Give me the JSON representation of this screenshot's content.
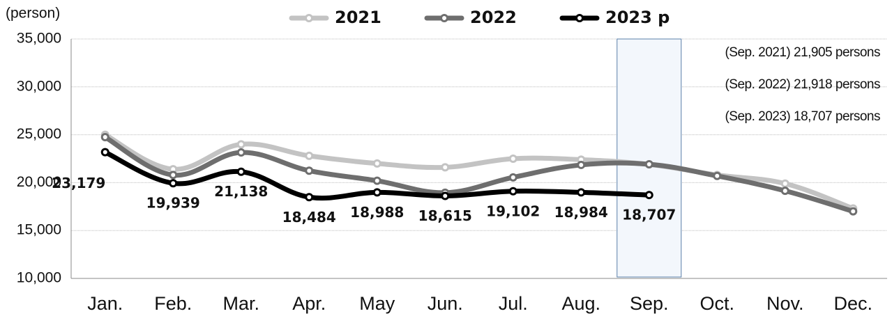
{
  "chart_data": {
    "type": "line",
    "y_axis_label": "(person)",
    "categories": [
      "Jan.",
      "Feb.",
      "Mar.",
      "Apr.",
      "May",
      "Jun.",
      "Jul.",
      "Aug.",
      "Sep.",
      "Oct.",
      "Nov.",
      "Dec."
    ],
    "series": [
      {
        "name": "2021",
        "color": "#c3c3c3",
        "values": [
          25000,
          21400,
          24000,
          22800,
          22000,
          21600,
          22500,
          22400,
          21905,
          20800,
          19900,
          17300
        ]
      },
      {
        "name": "2022",
        "color": "#6e6e6e",
        "values": [
          24750,
          20800,
          23150,
          21250,
          20200,
          18950,
          20550,
          21850,
          21918,
          20700,
          19150,
          17000
        ]
      },
      {
        "name": "2023 p",
        "color": "#000000",
        "values": [
          23179,
          19939,
          21138,
          18484,
          18988,
          18615,
          19102,
          18984,
          18707,
          null,
          null,
          null
        ],
        "value_labels": [
          "23,179",
          "19,939",
          "21,138",
          "18,484",
          "18,988",
          "18,615",
          "19,102",
          "18,984",
          "18,707",
          null,
          null,
          null
        ]
      }
    ],
    "ylim": [
      10000,
      35000
    ],
    "yticks": [
      {
        "value": 10000,
        "label": "10,000"
      },
      {
        "value": 15000,
        "label": "15,000"
      },
      {
        "value": 20000,
        "label": "20,000"
      },
      {
        "value": 25000,
        "label": "25,000"
      },
      {
        "value": 30000,
        "label": "30,000"
      },
      {
        "value": 35000,
        "label": "35,000"
      }
    ],
    "grid": true,
    "highlight": "Sep.",
    "annotations": [
      "(Sep. 2021) 21,905 persons",
      "(Sep. 2022) 21,918 persons",
      "(Sep. 2023) 18,707 persons"
    ]
  }
}
